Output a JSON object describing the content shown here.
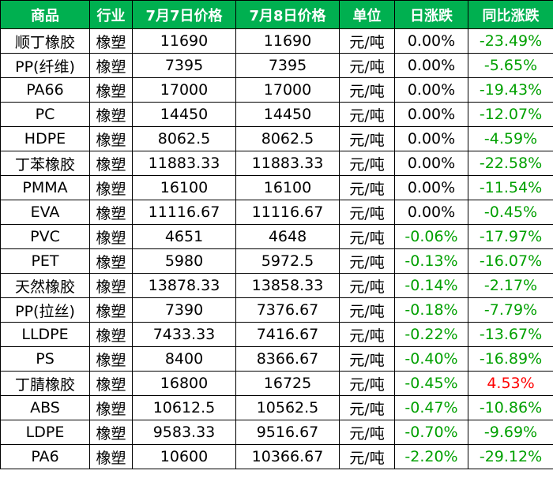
{
  "headers": [
    "商品",
    "行业",
    "7月7日价格",
    "7月8日价格",
    "单位",
    "日涨跌",
    "同比涨跌"
  ],
  "colors": {
    "header_bg": "#00b050",
    "header_text": "#ffffff",
    "negative": "#00a000",
    "positive": "#ff0000"
  },
  "rows": [
    {
      "product": "顺丁橡胶",
      "industry": "橡塑",
      "price_0707": "11690",
      "price_0708": "11690",
      "unit": "元/吨",
      "daily_change": "0.00%",
      "daily_dir": "flat",
      "yoy_change": "-23.49%",
      "yoy_dir": "neg"
    },
    {
      "product": "PP(纤维)",
      "industry": "橡塑",
      "price_0707": "7395",
      "price_0708": "7395",
      "unit": "元/吨",
      "daily_change": "0.00%",
      "daily_dir": "flat",
      "yoy_change": "-5.65%",
      "yoy_dir": "neg"
    },
    {
      "product": "PA66",
      "industry": "橡塑",
      "price_0707": "17000",
      "price_0708": "17000",
      "unit": "元/吨",
      "daily_change": "0.00%",
      "daily_dir": "flat",
      "yoy_change": "-19.43%",
      "yoy_dir": "neg"
    },
    {
      "product": "PC",
      "industry": "橡塑",
      "price_0707": "14450",
      "price_0708": "14450",
      "unit": "元/吨",
      "daily_change": "0.00%",
      "daily_dir": "flat",
      "yoy_change": "-12.07%",
      "yoy_dir": "neg"
    },
    {
      "product": "HDPE",
      "industry": "橡塑",
      "price_0707": "8062.5",
      "price_0708": "8062.5",
      "unit": "元/吨",
      "daily_change": "0.00%",
      "daily_dir": "flat",
      "yoy_change": "-4.59%",
      "yoy_dir": "neg"
    },
    {
      "product": "丁苯橡胶",
      "industry": "橡塑",
      "price_0707": "11883.33",
      "price_0708": "11883.33",
      "unit": "元/吨",
      "daily_change": "0.00%",
      "daily_dir": "flat",
      "yoy_change": "-22.58%",
      "yoy_dir": "neg"
    },
    {
      "product": "PMMA",
      "industry": "橡塑",
      "price_0707": "16100",
      "price_0708": "16100",
      "unit": "元/吨",
      "daily_change": "0.00%",
      "daily_dir": "flat",
      "yoy_change": "-11.54%",
      "yoy_dir": "neg"
    },
    {
      "product": "EVA",
      "industry": "橡塑",
      "price_0707": "11116.67",
      "price_0708": "11116.67",
      "unit": "元/吨",
      "daily_change": "0.00%",
      "daily_dir": "flat",
      "yoy_change": "-0.45%",
      "yoy_dir": "neg"
    },
    {
      "product": "PVC",
      "industry": "橡塑",
      "price_0707": "4651",
      "price_0708": "4648",
      "unit": "元/吨",
      "daily_change": "-0.06%",
      "daily_dir": "neg",
      "yoy_change": "-17.97%",
      "yoy_dir": "neg"
    },
    {
      "product": "PET",
      "industry": "橡塑",
      "price_0707": "5980",
      "price_0708": "5972.5",
      "unit": "元/吨",
      "daily_change": "-0.13%",
      "daily_dir": "neg",
      "yoy_change": "-16.07%",
      "yoy_dir": "neg"
    },
    {
      "product": "天然橡胶",
      "industry": "橡塑",
      "price_0707": "13878.33",
      "price_0708": "13858.33",
      "unit": "元/吨",
      "daily_change": "-0.14%",
      "daily_dir": "neg",
      "yoy_change": "-2.17%",
      "yoy_dir": "neg"
    },
    {
      "product": "PP(拉丝)",
      "industry": "橡塑",
      "price_0707": "7390",
      "price_0708": "7376.67",
      "unit": "元/吨",
      "daily_change": "-0.18%",
      "daily_dir": "neg",
      "yoy_change": "-7.79%",
      "yoy_dir": "neg"
    },
    {
      "product": "LLDPE",
      "industry": "橡塑",
      "price_0707": "7433.33",
      "price_0708": "7416.67",
      "unit": "元/吨",
      "daily_change": "-0.22%",
      "daily_dir": "neg",
      "yoy_change": "-13.67%",
      "yoy_dir": "neg"
    },
    {
      "product": "PS",
      "industry": "橡塑",
      "price_0707": "8400",
      "price_0708": "8366.67",
      "unit": "元/吨",
      "daily_change": "-0.40%",
      "daily_dir": "neg",
      "yoy_change": "-16.89%",
      "yoy_dir": "neg"
    },
    {
      "product": "丁腈橡胶",
      "industry": "橡塑",
      "price_0707": "16800",
      "price_0708": "16725",
      "unit": "元/吨",
      "daily_change": "-0.45%",
      "daily_dir": "neg",
      "yoy_change": "4.53%",
      "yoy_dir": "pos"
    },
    {
      "product": "ABS",
      "industry": "橡塑",
      "price_0707": "10612.5",
      "price_0708": "10562.5",
      "unit": "元/吨",
      "daily_change": "-0.47%",
      "daily_dir": "neg",
      "yoy_change": "-10.86%",
      "yoy_dir": "neg"
    },
    {
      "product": "LDPE",
      "industry": "橡塑",
      "price_0707": "9583.33",
      "price_0708": "9516.67",
      "unit": "元/吨",
      "daily_change": "-0.70%",
      "daily_dir": "neg",
      "yoy_change": "-9.69%",
      "yoy_dir": "neg"
    },
    {
      "product": "PA6",
      "industry": "橡塑",
      "price_0707": "10600",
      "price_0708": "10366.67",
      "unit": "元/吨",
      "daily_change": "-2.20%",
      "daily_dir": "neg",
      "yoy_change": "-29.12%",
      "yoy_dir": "neg"
    }
  ]
}
